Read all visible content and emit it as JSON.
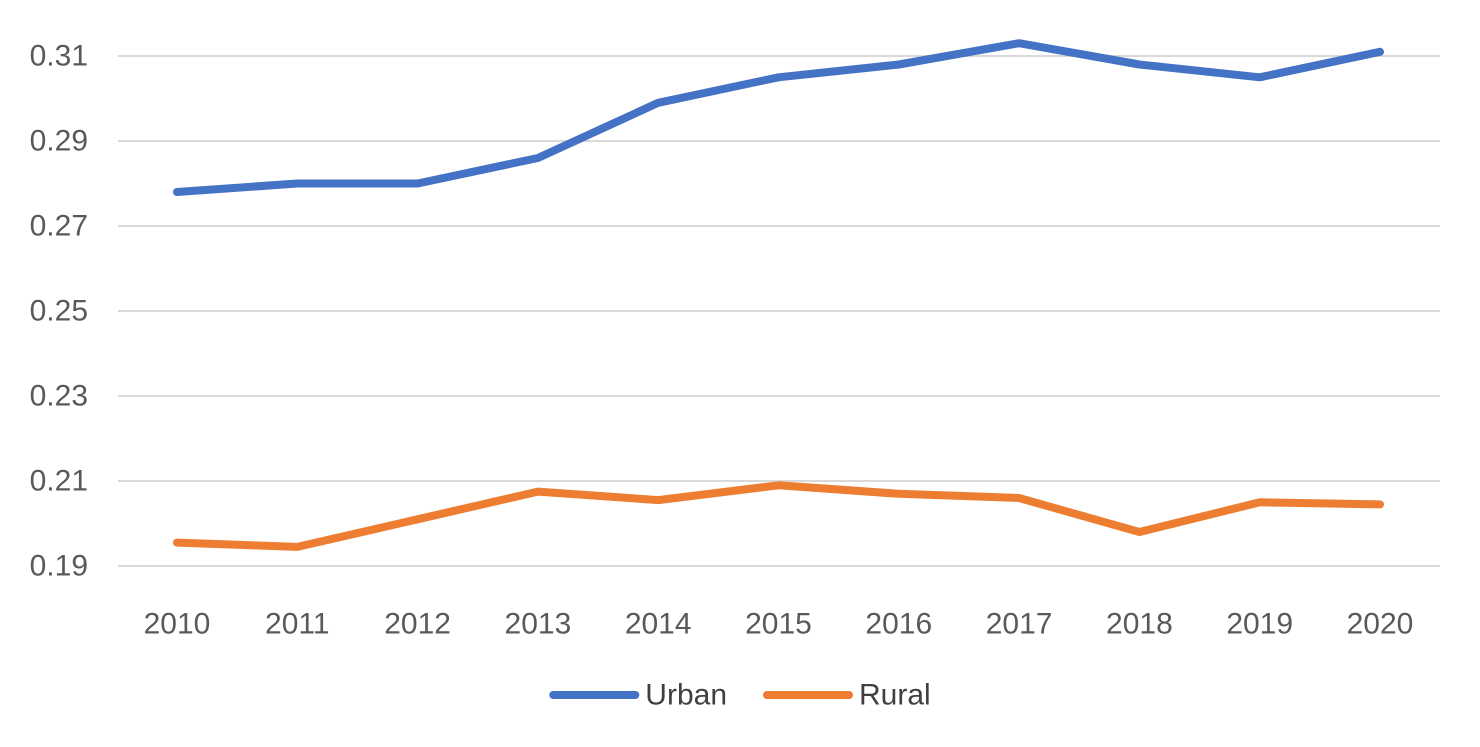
{
  "chart_data": {
    "type": "line",
    "title": "",
    "xlabel": "",
    "ylabel": "",
    "categories": [
      "2010",
      "2011",
      "2012",
      "2013",
      "2014",
      "2015",
      "2016",
      "2017",
      "2018",
      "2019",
      "2020"
    ],
    "y_tick_labels": [
      "0.19",
      "0.21",
      "0.23",
      "0.25",
      "0.27",
      "0.29",
      "0.31"
    ],
    "ylim": [
      0.19,
      0.31
    ],
    "grid": true,
    "legend_position": "bottom",
    "series": [
      {
        "name": "Urban",
        "color": "#4472C4",
        "values": [
          0.278,
          0.28,
          0.28,
          0.286,
          0.299,
          0.305,
          0.308,
          0.313,
          0.308,
          0.305,
          0.311
        ]
      },
      {
        "name": "Rural",
        "color": "#ED7D31",
        "values": [
          0.1955,
          0.1945,
          0.201,
          0.2075,
          0.2055,
          0.209,
          0.207,
          0.206,
          0.198,
          0.205,
          0.2045
        ]
      }
    ]
  }
}
